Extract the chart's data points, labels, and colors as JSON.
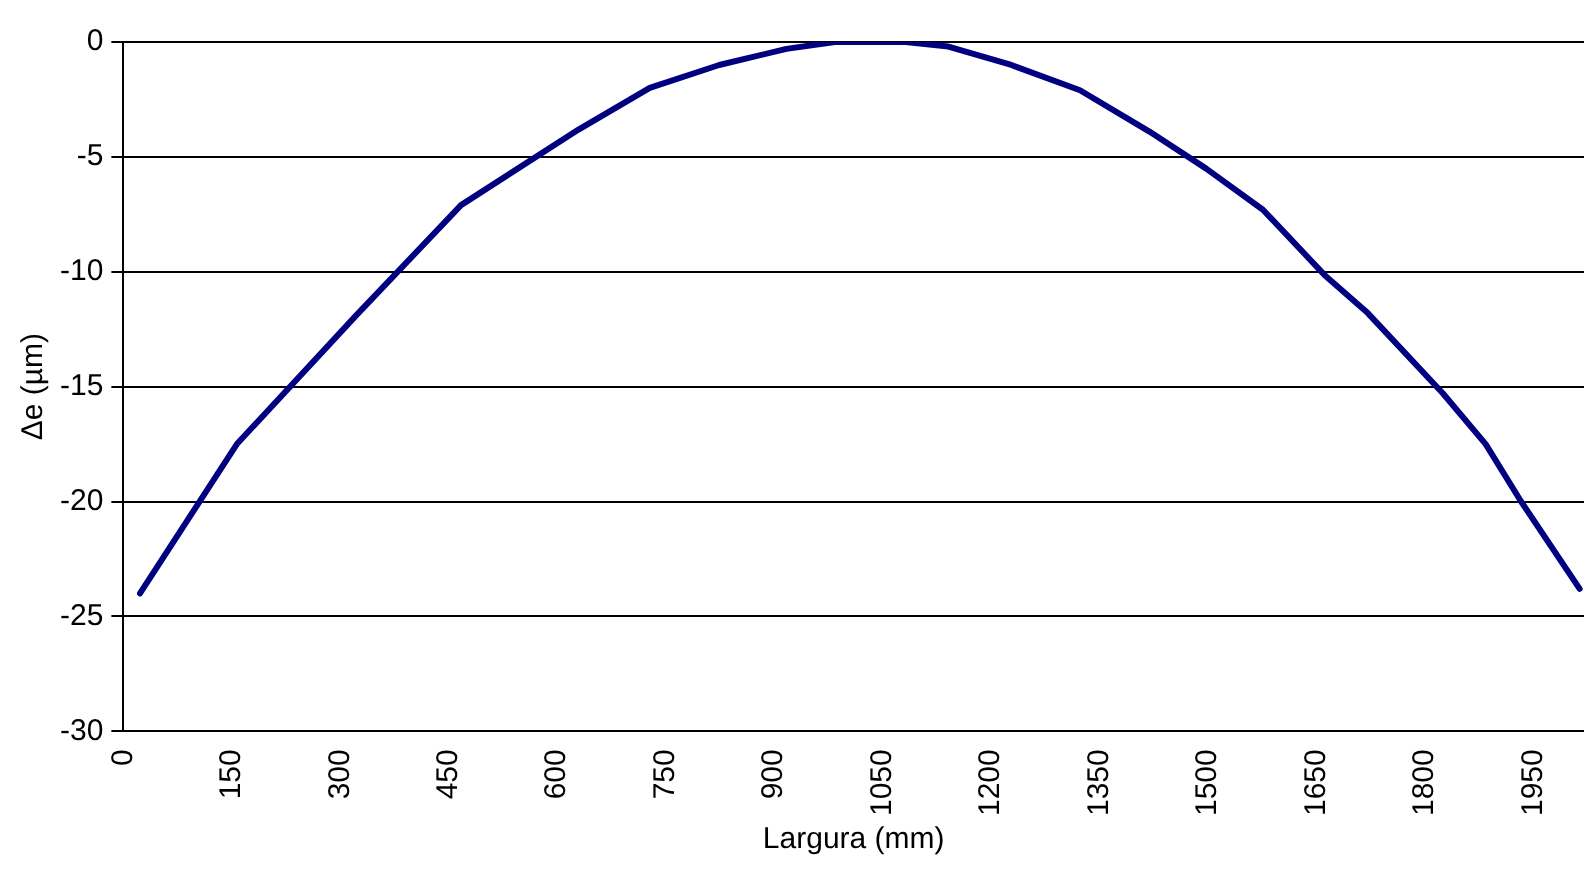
{
  "chart_data": {
    "type": "line",
    "xlabel": "Largura (mm)",
    "ylabel": "Δe (µm)",
    "x": [
      23,
      157,
      322,
      467,
      630,
      728,
      824,
      917,
      984,
      1082,
      1141,
      1228,
      1323,
      1419,
      1497,
      1576,
      1663,
      1721,
      1825,
      1884,
      1933,
      2014
    ],
    "series": [
      {
        "color": "#000080",
        "values": [
          -24,
          -17.5,
          -11.9,
          -7.1,
          -3.8,
          -2.0,
          -1.0,
          -0.3,
          0,
          0,
          -0.2,
          -1.0,
          -2.1,
          -3.9,
          -5.5,
          -7.3,
          -10.2,
          -11.8,
          -15.3,
          -17.5,
          -20.0,
          -23.8
        ]
      }
    ],
    "xlim": [
      0,
      2020
    ],
    "xticks": [
      0,
      150,
      300,
      450,
      600,
      750,
      900,
      1050,
      1200,
      1350,
      1500,
      1650,
      1800,
      1950
    ],
    "ylim": [
      -30,
      0
    ],
    "yticks": [
      -30,
      -25,
      -20,
      -15,
      -10,
      -5,
      0
    ],
    "grid": "y",
    "legend": false,
    "marker": "none",
    "line_style": "solid"
  }
}
